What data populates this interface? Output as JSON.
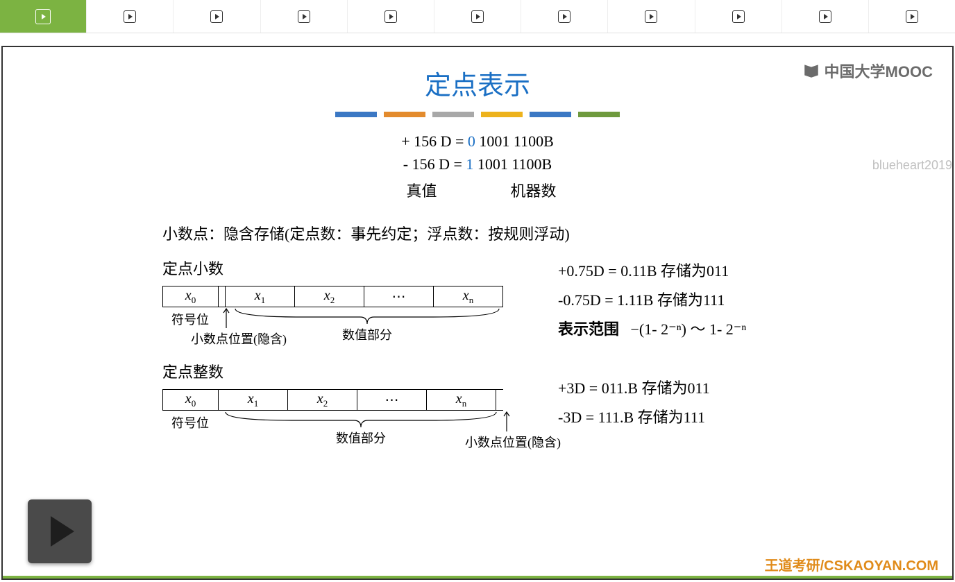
{
  "tabs": {
    "count": 11,
    "active_index": 0
  },
  "logo_text": "中国大学MOOC",
  "title": "定点表示",
  "stripes": [
    "#3b78c4",
    "#e38b2d",
    "#a8a8a8",
    "#edb21c",
    "#3b78c4",
    "#6f9a3e"
  ],
  "equations": {
    "line1_pre": "+ 156 D = ",
    "line1_sign": "0",
    "line1_rest": " 1001 1100B",
    "line2_pre": "-  156 D = ",
    "line2_sign": "1",
    "line2_rest": " 1001 1100B",
    "label_left": "真值",
    "label_right": "机器数"
  },
  "watermark": "blueheart2019",
  "intro": "小数点：隐含存储(定点数：事先约定；浮点数：按规则浮动)",
  "fraction": {
    "heading": "定点小数",
    "cells": [
      "x₀",
      "x₁",
      "x₂",
      "⋯",
      "xₙ"
    ],
    "sign_label": "符号位",
    "point_label": "小数点位置(隐含)",
    "value_label": "数值部分",
    "ex1": "+0.75D =  0.11B   存储为011",
    "ex2": "-0.75D  =  1.11B   存储为111",
    "range_label": "表示范围",
    "range_expr": "−(1- 2⁻ⁿ)  ～  1- 2⁻ⁿ"
  },
  "integer": {
    "heading": "定点整数",
    "cells": [
      "x₀",
      "x₁",
      "x₂",
      "⋯",
      "xₙ"
    ],
    "sign_label": "符号位",
    "point_label": "小数点位置(隐含)",
    "value_label": "数值部分",
    "ex1": "+3D  =  011.B   存储为011",
    "ex2": "-3D  =  111.B   存储为111"
  },
  "footer_brand": "王道考研/CSKAOYAN.COM",
  "colors": {
    "title": "#1a6fc4",
    "tab_active_bg": "#7cb342",
    "footer": "#e08b1a"
  }
}
